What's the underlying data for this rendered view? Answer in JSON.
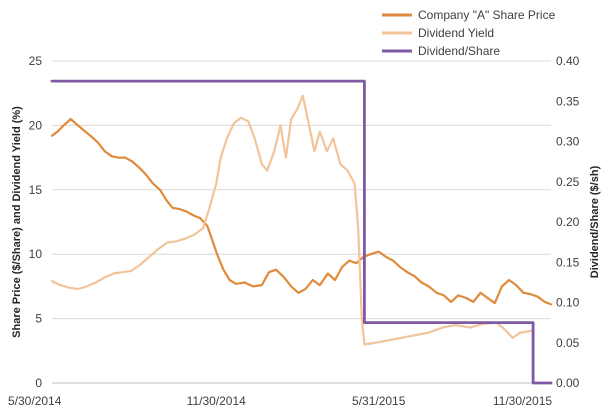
{
  "chart_data": {
    "type": "line",
    "title": "",
    "x_ticks": [
      "5/30/2014",
      "11/30/2014",
      "5/31/2015",
      "11/30/2015"
    ],
    "x_range": [
      "2014-05-30",
      "2015-12-10"
    ],
    "y_left": {
      "label": "Share Price ($/Share) and Dividend Yield (%)",
      "ticks": [
        "0",
        "5",
        "10",
        "15",
        "20",
        "25"
      ],
      "range": [
        0,
        25
      ]
    },
    "y_right": {
      "label": "Dividend/Share ($/sh)",
      "ticks": [
        "0.00",
        "0.05",
        "0.10",
        "0.15",
        "0.20",
        "0.25",
        "0.30",
        "0.35",
        "0.40"
      ],
      "range": [
        0,
        0.4
      ]
    },
    "legend_position": "top-right",
    "series": [
      {
        "name": "Company \"A\" Share Price",
        "axis": "left",
        "color": "#E08A3C",
        "points": [
          [
            "2014-05-30",
            19.2
          ],
          [
            "2014-06-05",
            19.5
          ],
          [
            "2014-06-12",
            20.0
          ],
          [
            "2014-06-20",
            20.5
          ],
          [
            "2014-06-28",
            20.0
          ],
          [
            "2014-07-05",
            19.6
          ],
          [
            "2014-07-12",
            19.2
          ],
          [
            "2014-07-20",
            18.7
          ],
          [
            "2014-07-28",
            18.0
          ],
          [
            "2014-08-05",
            17.6
          ],
          [
            "2014-08-12",
            17.5
          ],
          [
            "2014-08-20",
            17.5
          ],
          [
            "2014-08-28",
            17.2
          ],
          [
            "2014-09-05",
            16.7
          ],
          [
            "2014-09-12",
            16.2
          ],
          [
            "2014-09-20",
            15.5
          ],
          [
            "2014-09-28",
            15.0
          ],
          [
            "2014-10-05",
            14.2
          ],
          [
            "2014-10-12",
            13.6
          ],
          [
            "2014-10-20",
            13.5
          ],
          [
            "2014-10-28",
            13.3
          ],
          [
            "2014-11-05",
            13.0
          ],
          [
            "2014-11-12",
            12.8
          ],
          [
            "2014-11-20",
            12.2
          ],
          [
            "2014-11-25",
            11.2
          ],
          [
            "2014-12-01",
            10.0
          ],
          [
            "2014-12-08",
            8.8
          ],
          [
            "2014-12-15",
            8.0
          ],
          [
            "2014-12-22",
            7.7
          ],
          [
            "2015-01-01",
            7.8
          ],
          [
            "2015-01-10",
            7.5
          ],
          [
            "2015-01-20",
            7.6
          ],
          [
            "2015-01-28",
            8.6
          ],
          [
            "2015-02-05",
            8.8
          ],
          [
            "2015-02-14",
            8.2
          ],
          [
            "2015-02-22",
            7.5
          ],
          [
            "2015-03-02",
            7.0
          ],
          [
            "2015-03-10",
            7.3
          ],
          [
            "2015-03-18",
            8.0
          ],
          [
            "2015-03-26",
            7.6
          ],
          [
            "2015-04-04",
            8.5
          ],
          [
            "2015-04-12",
            8.0
          ],
          [
            "2015-04-20",
            9.0
          ],
          [
            "2015-04-28",
            9.5
          ],
          [
            "2015-05-06",
            9.3
          ],
          [
            "2015-05-14",
            9.8
          ],
          [
            "2015-05-22",
            10.0
          ],
          [
            "2015-05-31",
            10.2
          ],
          [
            "2015-06-08",
            9.8
          ],
          [
            "2015-06-16",
            9.5
          ],
          [
            "2015-06-24",
            9.0
          ],
          [
            "2015-07-02",
            8.6
          ],
          [
            "2015-07-10",
            8.3
          ],
          [
            "2015-07-18",
            7.8
          ],
          [
            "2015-07-26",
            7.5
          ],
          [
            "2015-08-04",
            7.0
          ],
          [
            "2015-08-12",
            6.8
          ],
          [
            "2015-08-20",
            6.3
          ],
          [
            "2015-08-28",
            6.8
          ],
          [
            "2015-09-06",
            6.6
          ],
          [
            "2015-09-14",
            6.3
          ],
          [
            "2015-09-22",
            7.0
          ],
          [
            "2015-09-30",
            6.6
          ],
          [
            "2015-10-08",
            6.2
          ],
          [
            "2015-10-16",
            7.5
          ],
          [
            "2015-10-24",
            8.0
          ],
          [
            "2015-11-01",
            7.6
          ],
          [
            "2015-11-09",
            7.0
          ],
          [
            "2015-11-17",
            6.9
          ],
          [
            "2015-11-25",
            6.7
          ],
          [
            "2015-12-03",
            6.3
          ],
          [
            "2015-12-10",
            6.1
          ]
        ]
      },
      {
        "name": "Dividend Yield",
        "axis": "left",
        "color": "#F2C49A",
        "points": [
          [
            "2014-05-30",
            7.9
          ],
          [
            "2014-06-08",
            7.6
          ],
          [
            "2014-06-18",
            7.4
          ],
          [
            "2014-06-28",
            7.3
          ],
          [
            "2014-07-08",
            7.5
          ],
          [
            "2014-07-18",
            7.8
          ],
          [
            "2014-07-28",
            8.2
          ],
          [
            "2014-08-07",
            8.5
          ],
          [
            "2014-08-17",
            8.6
          ],
          [
            "2014-08-27",
            8.7
          ],
          [
            "2014-09-06",
            9.2
          ],
          [
            "2014-09-16",
            9.8
          ],
          [
            "2014-09-26",
            10.4
          ],
          [
            "2014-10-06",
            10.9
          ],
          [
            "2014-10-16",
            11.0
          ],
          [
            "2014-10-26",
            11.2
          ],
          [
            "2014-11-05",
            11.5
          ],
          [
            "2014-11-15",
            12.0
          ],
          [
            "2014-11-22",
            13.5
          ],
          [
            "2014-11-30",
            15.5
          ],
          [
            "2014-12-05",
            17.5
          ],
          [
            "2014-12-12",
            19.0
          ],
          [
            "2014-12-20",
            20.2
          ],
          [
            "2014-12-28",
            20.6
          ],
          [
            "2015-01-05",
            20.3
          ],
          [
            "2015-01-12",
            19.0
          ],
          [
            "2015-01-20",
            17.0
          ],
          [
            "2015-01-26",
            16.5
          ],
          [
            "2015-02-03",
            18.0
          ],
          [
            "2015-02-10",
            20.0
          ],
          [
            "2015-02-16",
            17.5
          ],
          [
            "2015-02-22",
            20.5
          ],
          [
            "2015-03-01",
            21.3
          ],
          [
            "2015-03-07",
            22.3
          ],
          [
            "2015-03-14",
            20.0
          ],
          [
            "2015-03-20",
            18.0
          ],
          [
            "2015-03-26",
            19.5
          ],
          [
            "2015-04-03",
            18.0
          ],
          [
            "2015-04-10",
            19.0
          ],
          [
            "2015-04-18",
            17.0
          ],
          [
            "2015-04-26",
            16.5
          ],
          [
            "2015-05-04",
            15.5
          ],
          [
            "2015-05-08",
            12.0
          ],
          [
            "2015-05-12",
            5.0
          ],
          [
            "2015-05-15",
            3.0
          ],
          [
            "2015-05-25",
            3.1
          ],
          [
            "2015-06-10",
            3.3
          ],
          [
            "2015-06-25",
            3.5
          ],
          [
            "2015-07-10",
            3.7
          ],
          [
            "2015-07-25",
            3.9
          ],
          [
            "2015-08-10",
            4.3
          ],
          [
            "2015-08-25",
            4.5
          ],
          [
            "2015-09-10",
            4.3
          ],
          [
            "2015-09-25",
            4.6
          ],
          [
            "2015-10-10",
            4.7
          ],
          [
            "2015-10-20",
            4.1
          ],
          [
            "2015-10-28",
            3.5
          ],
          [
            "2015-11-05",
            3.9
          ],
          [
            "2015-11-14",
            4.0
          ],
          [
            "2015-11-20",
            4.1
          ]
        ]
      },
      {
        "name": "Dividend/Share",
        "axis": "right",
        "color": "#7E5AA2",
        "step": true,
        "points": [
          [
            "2014-05-30",
            0.375
          ],
          [
            "2015-05-15",
            0.375
          ],
          [
            "2015-05-15",
            0.075
          ],
          [
            "2015-11-20",
            0.075
          ],
          [
            "2015-11-20",
            0.0
          ],
          [
            "2015-12-10",
            0.0
          ]
        ]
      }
    ]
  }
}
